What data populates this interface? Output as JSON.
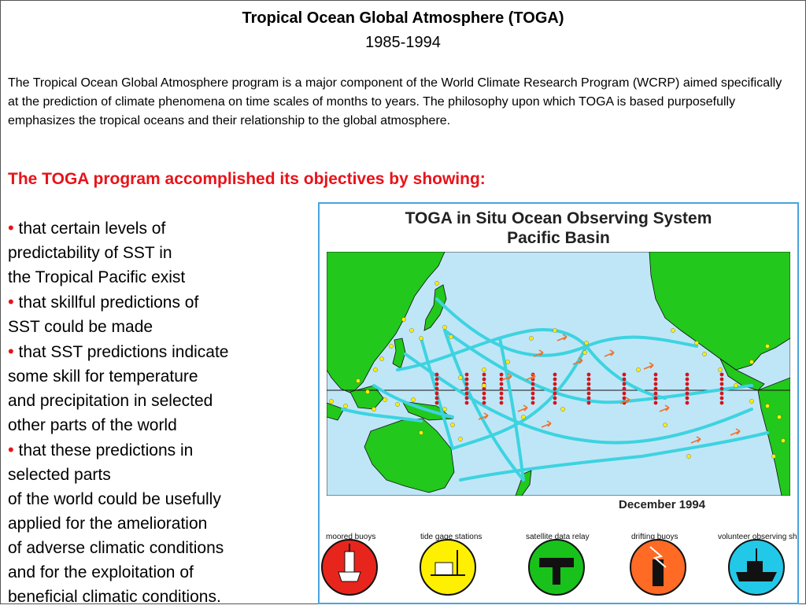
{
  "page": {
    "title": "Tropical Ocean Global Atmosphere (TOGA)",
    "years": "1985-1994",
    "intro": "The Tropical Ocean Global Atmosphere program is a major component of the World Climate Research Program (WCRP) aimed specifically at the prediction of climate phenomena on time scales of months to years. The philosophy upon which TOGA is based purposefully emphasizes the tropical oceans and their relationship to the global atmosphere.",
    "heading": "The TOGA program accomplished its objectives by showing:",
    "bullet_symbol": "•",
    "bullets": [
      [
        "that certain levels of",
        "predictability of SST in",
        "the Tropical Pacific exist"
      ],
      [
        "that skillful predictions of",
        "SST could be made"
      ],
      [
        "that SST predictions indicate",
        "some skill for temperature",
        "and precipitation in selected",
        "other parts of the world"
      ],
      [
        "that these predictions in",
        "selected parts",
        "of the world could be usefully",
        "applied for the amelioration",
        "of adverse climatic conditions",
        "and for the exploitation of",
        "beneficial climatic conditions."
      ]
    ]
  },
  "figure": {
    "title_line1": "TOGA in Situ Ocean Observing System",
    "title_line2": "Pacific Basin",
    "date": "December 1994",
    "colors": {
      "ocean": "#bfe6f7",
      "land": "#22c81c",
      "tracks": "#3dd3e0",
      "tide_gauge": "#ffee00",
      "moored_buoy": "#d5141a",
      "drifter": "#f07028",
      "frame": "#48a4e0"
    },
    "legend": [
      {
        "label": "moored buoys",
        "color": "#e8251c",
        "icon": "moored-buoy-icon"
      },
      {
        "label": "tide gage stations",
        "color": "#fff000",
        "icon": "tide-gauge-icon"
      },
      {
        "label": "satellite data relay",
        "color": "#18c21a",
        "icon": "satellite-icon"
      },
      {
        "label": "drifting buoys",
        "color": "#ff6a24",
        "icon": "drifting-buoy-icon"
      },
      {
        "label": "volunteer observing ships",
        "color": "#22c8e8",
        "icon": "ship-icon"
      }
    ]
  }
}
